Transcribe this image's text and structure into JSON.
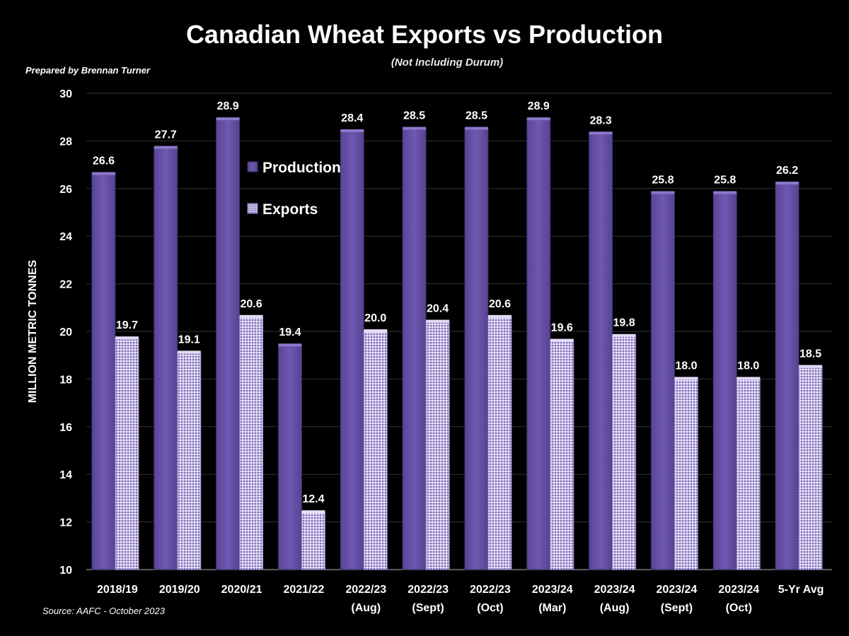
{
  "chart_data": {
    "type": "bar",
    "title": "Canadian Wheat Exports vs Production",
    "subtitle": "(Not Including Durum)",
    "ylabel": "MILLION METRIC TONNES",
    "xlabel": "",
    "ylim": [
      10,
      30
    ],
    "yticks": [
      10,
      12,
      14,
      16,
      18,
      20,
      22,
      24,
      26,
      28,
      30
    ],
    "grid": true,
    "legend_position": "upper-left",
    "categories": [
      [
        "2018/19"
      ],
      [
        "2019/20"
      ],
      [
        "2020/21"
      ],
      [
        "2021/22"
      ],
      [
        "2022/23",
        "(Aug)"
      ],
      [
        "2022/23",
        "(Sept)"
      ],
      [
        "2022/23",
        "(Oct)"
      ],
      [
        "2023/24",
        "(Mar)"
      ],
      [
        "2023/24",
        "(Aug)"
      ],
      [
        "2023/24",
        "(Sept)"
      ],
      [
        "2023/24",
        "(Oct)"
      ],
      [
        "5-Yr Avg"
      ]
    ],
    "series": [
      {
        "name": "Production",
        "color": "#6650a6",
        "values": [
          26.6,
          27.7,
          28.9,
          19.4,
          28.4,
          28.5,
          28.5,
          28.9,
          28.3,
          25.8,
          25.8,
          26.2
        ]
      },
      {
        "name": "Exports",
        "color": "#c9bee6",
        "pattern": "dotted",
        "values": [
          19.7,
          19.1,
          20.6,
          12.4,
          20.0,
          20.4,
          20.6,
          19.6,
          19.8,
          18.0,
          18.0,
          18.5
        ]
      }
    ]
  },
  "prepared_by": "Prepared by Brennan Turner",
  "source": "Source: AAFC -  October 2023"
}
